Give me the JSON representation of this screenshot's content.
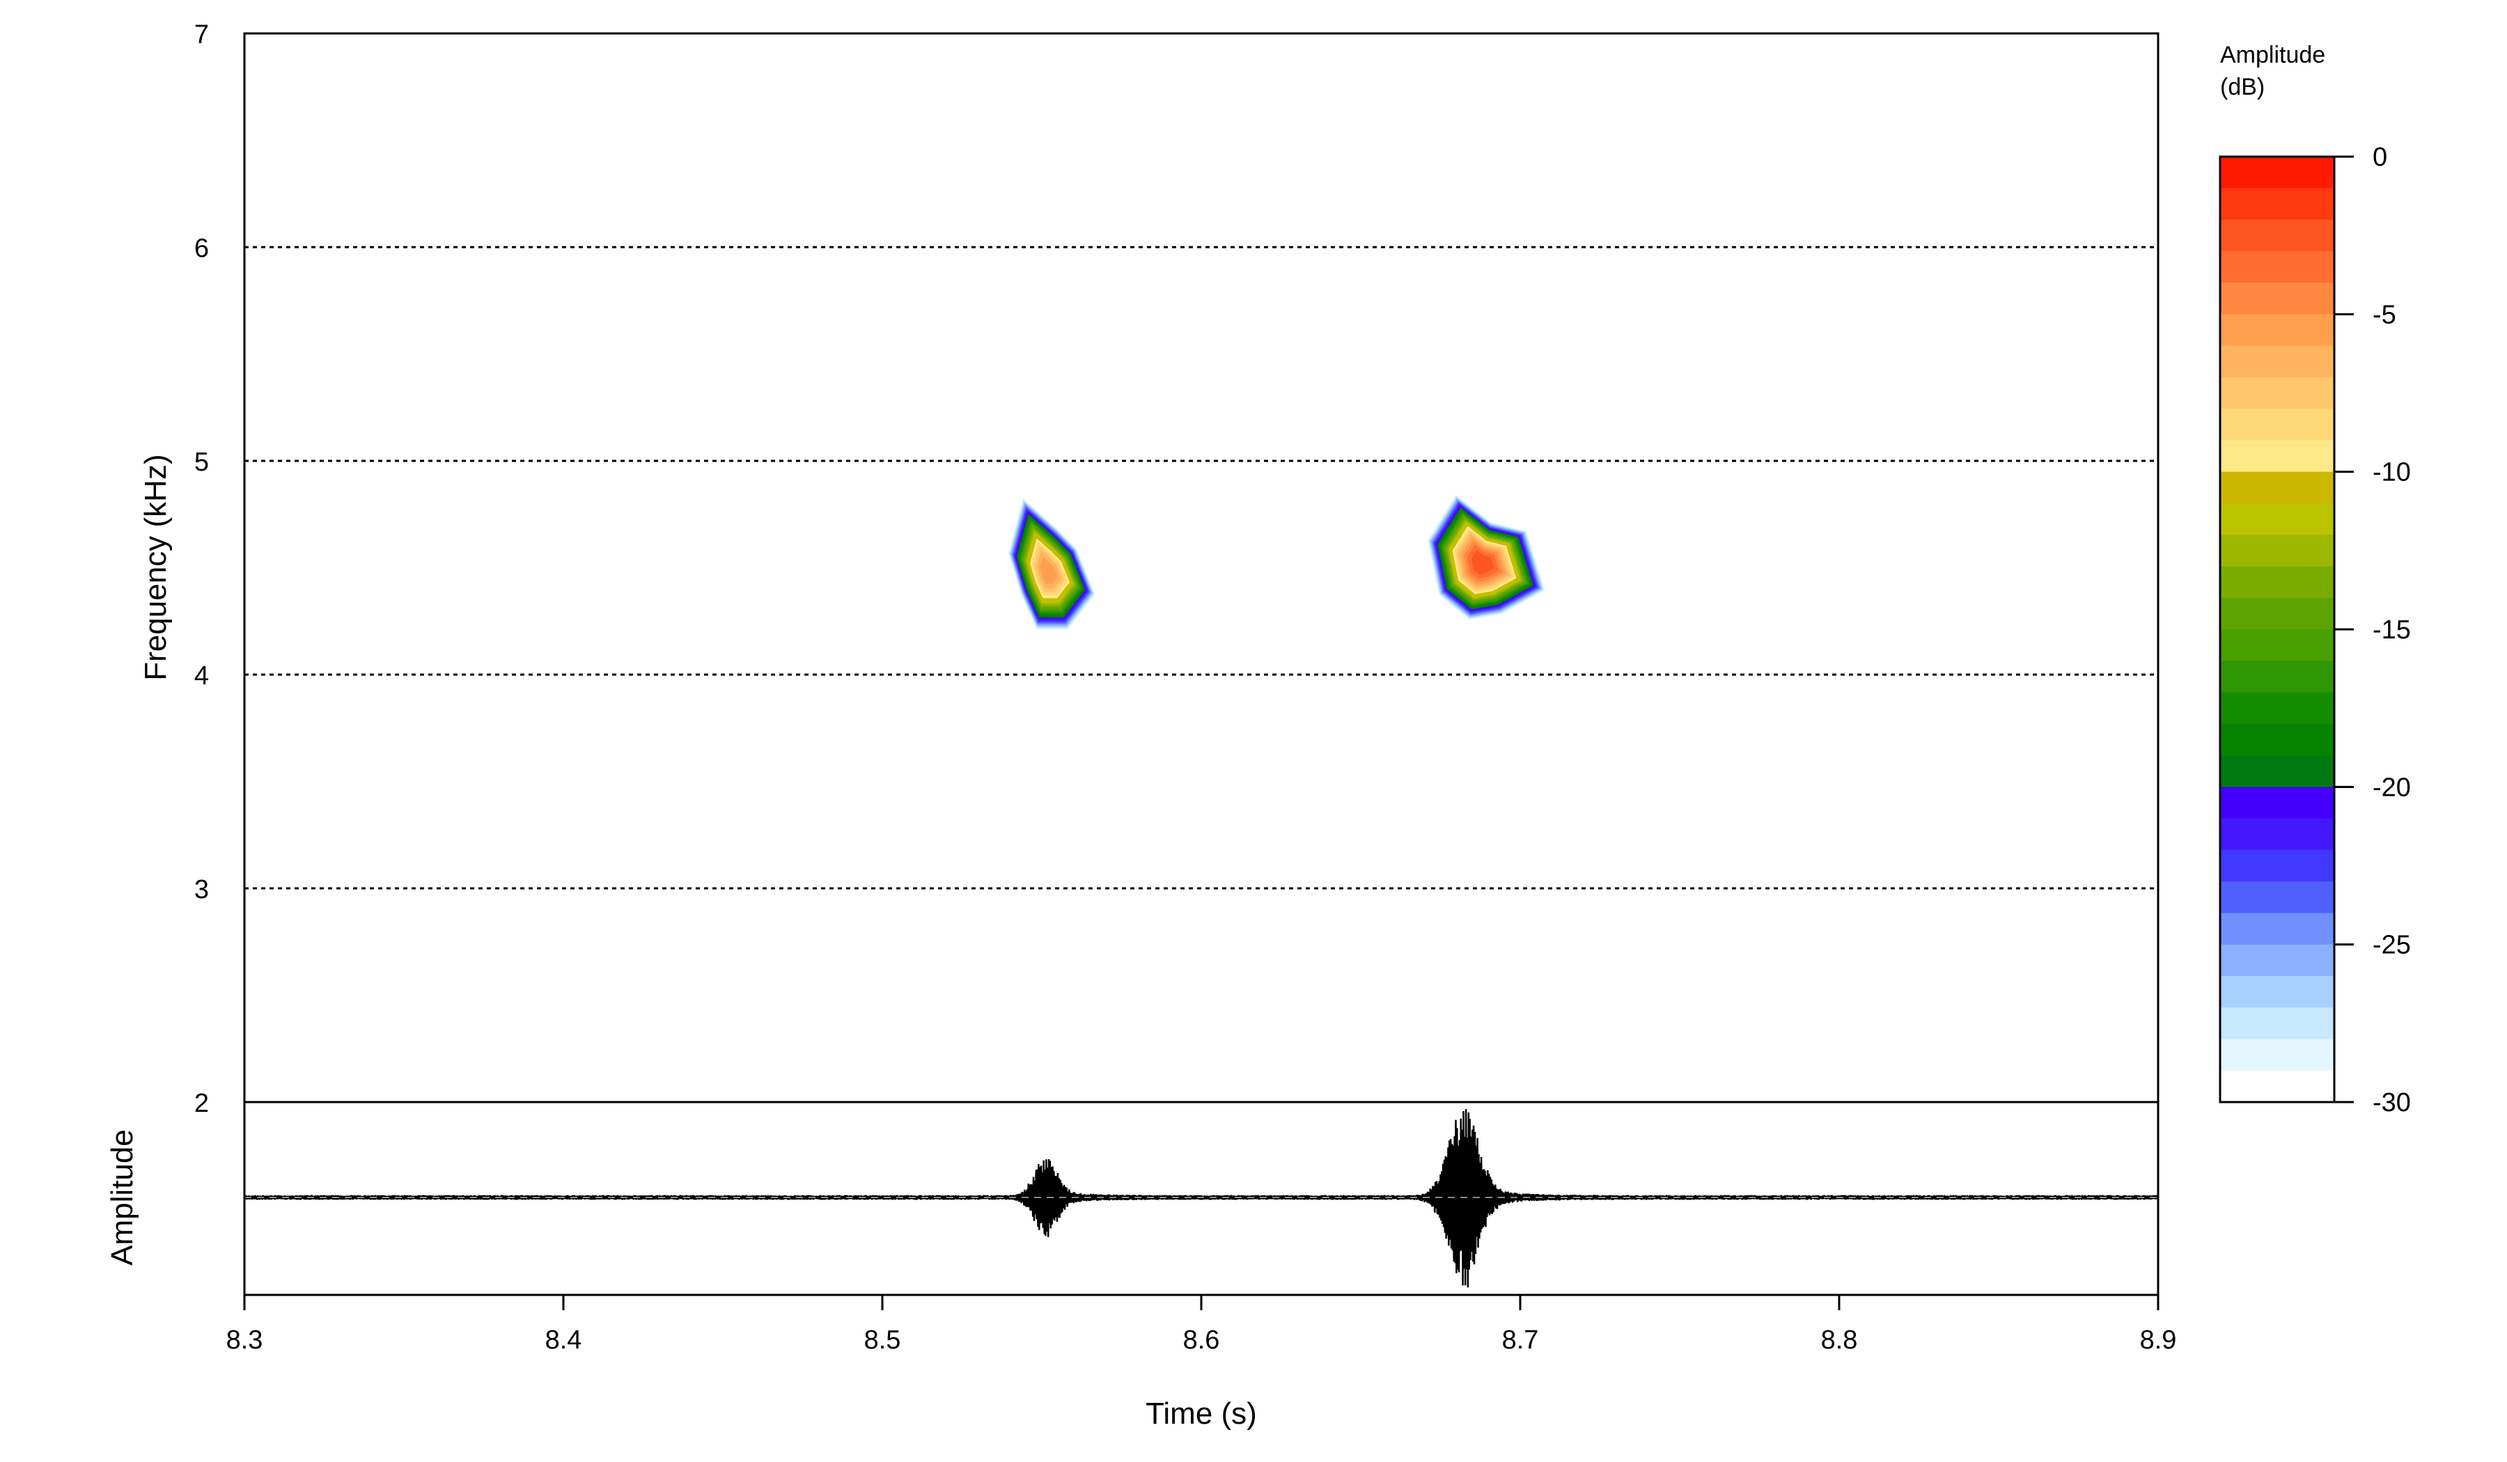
{
  "chart_data": {
    "type": "heatmap",
    "subtype": "spectrogram-contour-with-oscillogram",
    "xlabel": "Time (s)",
    "ylabel": "Frequency (kHz)",
    "oscillogram_label": "Amplitude",
    "xlim": [
      8.3,
      8.9
    ],
    "ylim": [
      2,
      7
    ],
    "xticks": [
      "8.3",
      "8.4",
      "8.5",
      "8.6",
      "8.7",
      "8.8",
      "8.9"
    ],
    "yticks": [
      "2",
      "3",
      "4",
      "5",
      "6",
      "7"
    ],
    "grid": "dotted horizontal at 3, 4, 5, 6 kHz",
    "colorbar": {
      "title_line1": "Amplitude",
      "title_line2": "(dB)",
      "range": [
        -30,
        0
      ],
      "ticks": [
        "0",
        "-5",
        "-10",
        "-15",
        "-20",
        "-25",
        "-30"
      ],
      "levels_top_to_bottom": [
        "#FF1A00",
        "#FF3A10",
        "#FF5520",
        "#FF6E30",
        "#FF8840",
        "#FF9F4E",
        "#FFB35E",
        "#FFC66C",
        "#FFD878",
        "#FFE888",
        "#CCB800",
        "#BCC400",
        "#9CB800",
        "#7AAC00",
        "#5EA400",
        "#48A000",
        "#2E9600",
        "#158C00",
        "#068400",
        "#007A10",
        "#4400FF",
        "#4418FF",
        "#4038FF",
        "#5060FF",
        "#7090FF",
        "#8AB0FF",
        "#A8D0FF",
        "#C8E8FF",
        "#E4F6FF",
        "#FFFFFF"
      ]
    },
    "spectral_events": [
      {
        "time_s": 8.552,
        "freq_khz": 4.48,
        "peak_db": -4,
        "time_halfwidth_s": 0.013,
        "freq_halfwidth_khz": 0.3
      },
      {
        "time_s": 8.688,
        "freq_khz": 4.52,
        "peak_db": -1,
        "time_halfwidth_s": 0.016,
        "freq_halfwidth_khz": 0.33
      }
    ],
    "oscillogram_bursts": [
      {
        "time_s": 8.551,
        "relative_amplitude": 0.42,
        "duration_s": 0.012
      },
      {
        "time_s": 8.682,
        "relative_amplitude": 0.95,
        "duration_s": 0.016
      }
    ],
    "noise_relative_amplitude": 0.025
  }
}
